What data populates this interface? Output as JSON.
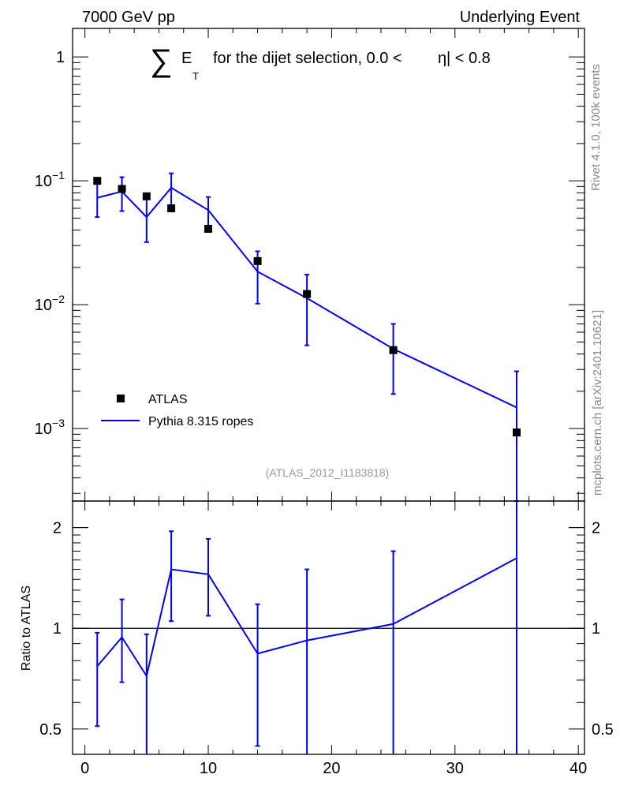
{
  "header": {
    "energy_label": "7000 GeV pp",
    "process_label": "Underlying Event"
  },
  "side_text": {
    "generator_info": "Rivet 4.1.0,  100k events",
    "source_info": "mcplots.cern.ch [arXiv:2401.10621]"
  },
  "chart_data": [
    {
      "type": "scatter",
      "panel": "main",
      "title_symbol": "∑",
      "title_var": "E",
      "title_sub": "T",
      "title_text": "for the dijet selection, 0.0 <",
      "title_eta": "η",
      "title_end": "| < 0.8",
      "yscale": "log",
      "xlim": [
        -1,
        40.5
      ],
      "ylim": [
        0.00026,
        1.7
      ],
      "y_ticks": [
        {
          "value": 1,
          "base": "1",
          "exp": ""
        },
        {
          "value": 0.1,
          "base": "10",
          "exp": "−1"
        },
        {
          "value": 0.01,
          "base": "10",
          "exp": "−2"
        },
        {
          "value": 0.001,
          "base": "10",
          "exp": "−3"
        }
      ],
      "analysis_label": "(ATLAS_2012_I1183818)",
      "legend": {
        "position": "bottom-left",
        "entries": [
          "ATLAS",
          "Pythia 8.315 ropes"
        ]
      },
      "series": [
        {
          "name": "ATLAS",
          "style": "markers",
          "color": "#000000",
          "x": [
            1,
            3,
            5,
            7,
            10,
            14,
            18,
            25,
            35
          ],
          "y": [
            0.1,
            0.086,
            0.075,
            0.06,
            0.041,
            0.0225,
            0.0122,
            0.0043,
            0.00093
          ]
        },
        {
          "name": "Pythia 8.315 ropes",
          "style": "line",
          "color": "#0000ee",
          "x": [
            1,
            3,
            5,
            7,
            10,
            14,
            18,
            25,
            35
          ],
          "y": [
            0.073,
            0.082,
            0.051,
            0.088,
            0.058,
            0.0185,
            0.0113,
            0.0044,
            0.00148
          ],
          "err_low": [
            0.051,
            0.057,
            0.032,
            0.062,
            0.042,
            0.0102,
            0.0047,
            0.0019,
            0.0002
          ],
          "err_high": [
            0.102,
            0.107,
            0.076,
            0.115,
            0.074,
            0.027,
            0.0175,
            0.007,
            0.0029
          ]
        }
      ]
    },
    {
      "type": "line",
      "panel": "ratio",
      "ylabel": "Ratio to ATLAS",
      "yscale": "log",
      "xlim": [
        -1,
        40.5
      ],
      "ylim": [
        0.42,
        2.4
      ],
      "x_ticks": [
        0,
        10,
        20,
        30,
        40
      ],
      "y_ticks": [
        {
          "value": 0.5,
          "label": "0.5"
        },
        {
          "value": 1,
          "label": "1"
        },
        {
          "value": 2,
          "label": "2"
        }
      ],
      "reference": 1,
      "series": [
        {
          "name": "Pythia 8.315 ropes / ATLAS",
          "color": "#0000ee",
          "x": [
            1,
            3,
            5,
            7,
            10,
            14,
            18,
            25,
            35
          ],
          "y": [
            0.77,
            0.94,
            0.72,
            1.5,
            1.45,
            0.84,
            0.92,
            1.03,
            1.62
          ],
          "err_low": [
            0.51,
            0.69,
            0.385,
            1.05,
            1.09,
            0.445,
            0.3,
            0.41,
            0.3
          ],
          "err_high": [
            0.97,
            1.22,
            0.96,
            1.95,
            1.85,
            1.18,
            1.5,
            1.7,
            2.5
          ]
        }
      ]
    }
  ]
}
